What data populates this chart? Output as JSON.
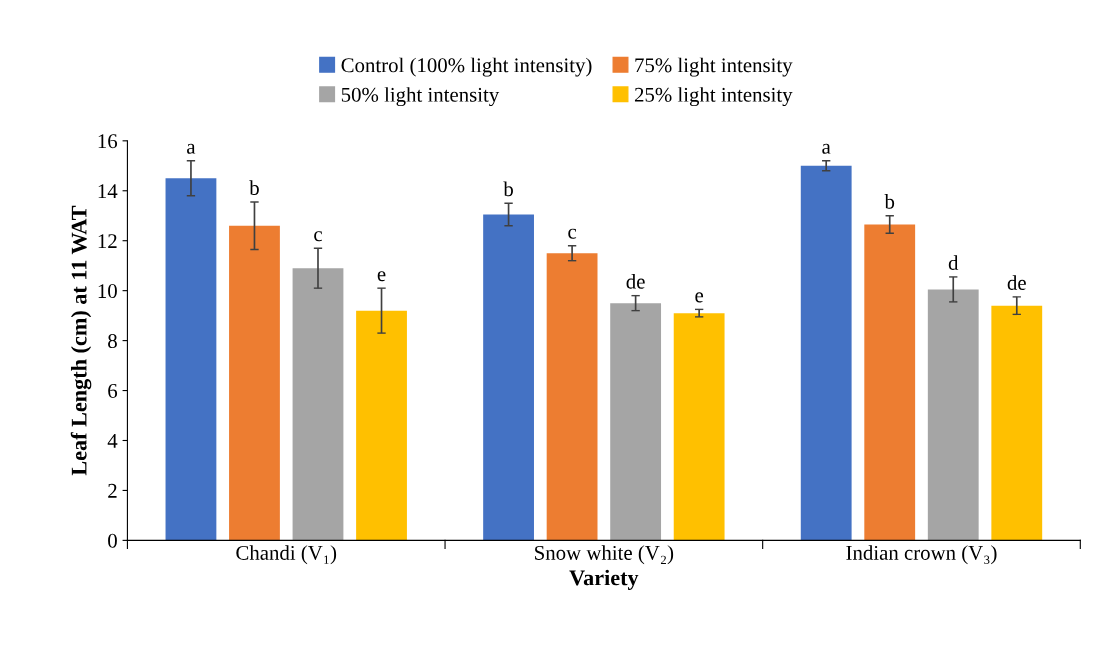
{
  "chart_data": {
    "type": "bar",
    "xlabel": "Variety",
    "ylabel": "Leaf Length (cm) at 11 WAT",
    "categories": [
      "Chandi (V₁)",
      "Snow white (V₂)",
      "Indian crown (V₃)"
    ],
    "series": [
      {
        "name": "Control (100% light intensity)",
        "color": "#4472c4",
        "values": [
          14.5,
          13.05,
          15.0
        ],
        "errors": [
          0.7,
          0.45,
          0.2
        ]
      },
      {
        "name": "75% light intensity",
        "color": "#ed7d31",
        "values": [
          12.6,
          11.5,
          12.65
        ],
        "errors": [
          0.95,
          0.3,
          0.35
        ]
      },
      {
        "name": "50% light intensity",
        "color": "#a5a5a5",
        "values": [
          10.9,
          9.5,
          10.05
        ],
        "errors": [
          0.8,
          0.3,
          0.5
        ]
      },
      {
        "name": "25% light intensity",
        "color": "#ffc000",
        "values": [
          9.2,
          9.1,
          9.4
        ],
        "errors": [
          0.9,
          0.15,
          0.35
        ]
      }
    ],
    "annotations": [
      "a",
      "b",
      "c",
      "e",
      "b",
      "c",
      "de",
      "e",
      "a",
      "b",
      "d",
      "de"
    ],
    "ylim": [
      0,
      16
    ],
    "yticks": [
      0,
      2,
      4,
      6,
      8,
      10,
      12,
      14,
      16
    ],
    "grid": false,
    "legend": "top"
  }
}
